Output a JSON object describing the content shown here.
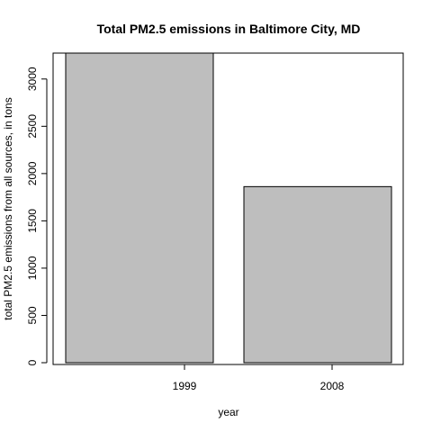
{
  "chart_data": {
    "type": "bar",
    "title": "Total PM2.5 emissions in Baltimore City, MD",
    "xlabel": "year",
    "ylabel": "total PM2.5 emissions from all sources, in tons",
    "categories": [
      "1999",
      "2008"
    ],
    "values": [
      3274,
      1862
    ],
    "ylim": [
      0,
      3274
    ],
    "yticks": [
      0,
      500,
      1000,
      1500,
      2000,
      2500,
      3000
    ],
    "ytick_labels": [
      "0",
      "500",
      "1000",
      "1500",
      "2000",
      "2500",
      "3000"
    ],
    "grid": false,
    "legend": "none",
    "colors": {
      "bar_fill": "#bebebe",
      "bar_stroke": "#000000",
      "axis": "#000000"
    }
  }
}
